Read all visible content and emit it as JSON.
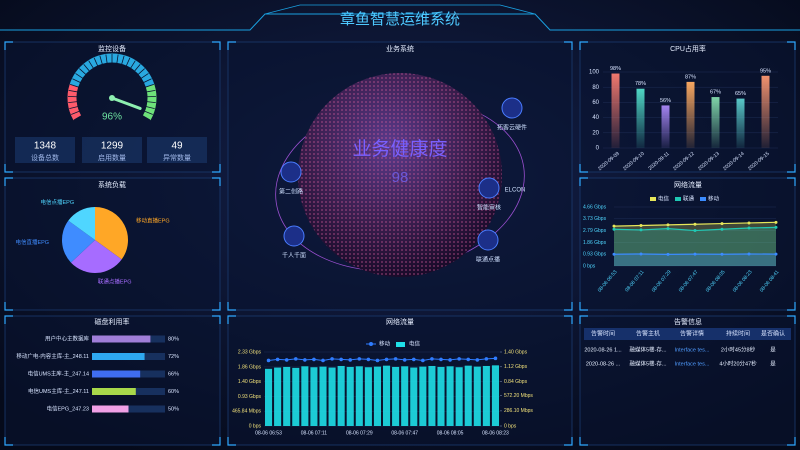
{
  "header": {
    "title": "章鱼智慧运维系统"
  },
  "devices": {
    "stats": [
      {
        "value": 1348,
        "label": "设备总数"
      },
      {
        "value": 1299,
        "label": "启用数量"
      },
      {
        "value": 49,
        "label": "异常数量"
      }
    ]
  },
  "business": {
    "title": "业务系统",
    "health_label": "业务健康度",
    "health": 98,
    "nodes": [
      "拓客云硬件",
      "第二创路",
      "ELCON",
      "智能审核",
      "千人千面",
      "联通点播"
    ]
  },
  "chart_data": [
    {
      "type": "gauge",
      "title": "监控设备",
      "value": 96,
      "value_label": "96%",
      "range": [
        0,
        100
      ]
    },
    {
      "type": "pie",
      "title": "系统负载",
      "categories": [
        "移动直播EPG",
        "联通点播EPG",
        "电信直播EPG",
        "电信点播EPG"
      ],
      "values": [
        35,
        28,
        22,
        15
      ],
      "colors": [
        "#ffa726",
        "#a66cff",
        "#3f8cff",
        "#4fd6ff"
      ]
    },
    {
      "type": "bar",
      "title": "CPU占用率",
      "categories": [
        "2020-09-09",
        "2020-09-10",
        "2020-09-11",
        "2020-09-12",
        "2020-09-13",
        "2020-09-14",
        "2020-09-15"
      ],
      "values": [
        98,
        78,
        56,
        87,
        67,
        65,
        95
      ],
      "value_labels": [
        "98%",
        "78%",
        "56%",
        "87%",
        "67%",
        "65%",
        "95%"
      ],
      "colors": [
        "#f0786e",
        "#4fd6c4",
        "#a383f0",
        "#f7a660",
        "#7fd4a8",
        "#58c7c7",
        "#f0916e"
      ],
      "ylim": [
        0,
        100
      ],
      "yticks": [
        0,
        20,
        40,
        60,
        80,
        100
      ]
    },
    {
      "type": "line",
      "title": "网络流量",
      "categories": [
        "08-06 06:53",
        "08-06 07:11",
        "08-06 07:29",
        "08-06 07:47",
        "08-06 08:05",
        "08-06 08:23",
        "08-06 08:41"
      ],
      "series": [
        {
          "name": "电信",
          "color": "#e6e65a",
          "values": [
            3.15,
            3.2,
            3.25,
            3.3,
            3.35,
            3.4,
            3.45
          ]
        },
        {
          "name": "联通",
          "color": "#1fc8b4",
          "values": [
            2.9,
            2.85,
            2.95,
            2.8,
            2.9,
            3.0,
            3.05
          ]
        },
        {
          "name": "移动",
          "color": "#3b8cff",
          "values": [
            0.93,
            0.95,
            0.92,
            0.94,
            0.93,
            0.95,
            0.94
          ]
        }
      ],
      "ylim": [
        0,
        4.66
      ],
      "yticks": [
        {
          "value": 0,
          "label": "0 bps"
        },
        {
          "value": 0.93,
          "label": "0.93 Gbps"
        },
        {
          "value": 1.86,
          "label": "1.86 Gbps"
        },
        {
          "value": 2.79,
          "label": "2.79 Gbps"
        },
        {
          "value": 3.73,
          "label": "3.73 Gbps"
        },
        {
          "value": 4.66,
          "label": "4.66 Gbps"
        }
      ],
      "legend": "top"
    },
    {
      "type": "hbar",
      "title": "磁盘利用率",
      "categories": [
        "用户中心主数据库",
        "移动广电-内容主库-主_248.11",
        "电信UMS主库-主_247.14",
        "电信UMS主库-主_247.11",
        "电信EPG_247.23"
      ],
      "values": [
        80,
        72,
        66,
        60,
        50
      ],
      "value_labels": [
        "80%",
        "72%",
        "66%",
        "60%",
        "50%"
      ],
      "colors": [
        "#a07ed8",
        "#2ea8f0",
        "#3f6df0",
        "#a8d84a",
        "#f0a0e6"
      ],
      "xlim": [
        0,
        100
      ]
    },
    {
      "type": "combo",
      "title": "网络流量",
      "categories": [
        "08-06 06:53",
        null,
        null,
        null,
        null,
        "08-06 07:11",
        null,
        null,
        null,
        null,
        "08-06 07:29",
        null,
        null,
        null,
        null,
        "08-06 07:47",
        null,
        null,
        null,
        null,
        "08-06 08:05",
        null,
        null,
        null,
        null,
        "08-06 08:23"
      ],
      "series": [
        {
          "name": "移动",
          "color": "#2f7cff",
          "kind": "line",
          "axis": "y2",
          "values": [
            1.24,
            1.26,
            1.25,
            1.27,
            1.25,
            1.26,
            1.24,
            1.27,
            1.26,
            1.25,
            1.27,
            1.26,
            1.24,
            1.26,
            1.27,
            1.25,
            1.26,
            1.24,
            1.27,
            1.26,
            1.25,
            1.27,
            1.26,
            1.25,
            1.27,
            1.28
          ]
        },
        {
          "name": "电信",
          "color": "#1fe0e8",
          "kind": "bar",
          "values": [
            1.8,
            1.84,
            1.86,
            1.83,
            1.88,
            1.85,
            1.87,
            1.84,
            1.89,
            1.86,
            1.88,
            1.85,
            1.87,
            1.9,
            1.86,
            1.88,
            1.84,
            1.87,
            1.89,
            1.86,
            1.88,
            1.85,
            1.9,
            1.87,
            1.89,
            1.91
          ]
        }
      ],
      "ylim": [
        0,
        2.33
      ],
      "yticks": [
        {
          "value": 0,
          "label": "0 bps"
        },
        {
          "value": 0.46584,
          "label": "465.84 Mbps"
        },
        {
          "value": 0.93,
          "label": "0.93 Gbps"
        },
        {
          "value": 1.4,
          "label": "1.40 Gbps"
        },
        {
          "value": 1.86,
          "label": "1.86 Gbps"
        },
        {
          "value": 2.33,
          "label": "2.33 Gbps"
        }
      ],
      "y2lim": [
        0,
        1.4
      ],
      "y2ticks": [
        {
          "value": 0,
          "label": "0 bps"
        },
        {
          "value": 0.2861,
          "label": "286.10 Mbps"
        },
        {
          "value": 0.5722,
          "label": "572.20 Mbps"
        },
        {
          "value": 0.84,
          "label": "0.84 Gbps"
        },
        {
          "value": 1.12,
          "label": "1.12 Gbps"
        },
        {
          "value": 1.4,
          "label": "1.40 Gbps"
        }
      ],
      "legend": "top"
    }
  ],
  "alerts": {
    "title": "告警信息",
    "columns": [
      "告警时间",
      "告警主机",
      "告警详情",
      "持续时间",
      "是否确认"
    ],
    "rows": [
      [
        "2020-08-26 1...",
        "融媒体5楼-存...",
        "Interface tes...",
        "2小时45分8秒",
        "是"
      ],
      [
        "2020-08-26 ...",
        "融媒体5楼-存...",
        "Interface tes...",
        "4小时20分47秒",
        "是"
      ]
    ]
  }
}
